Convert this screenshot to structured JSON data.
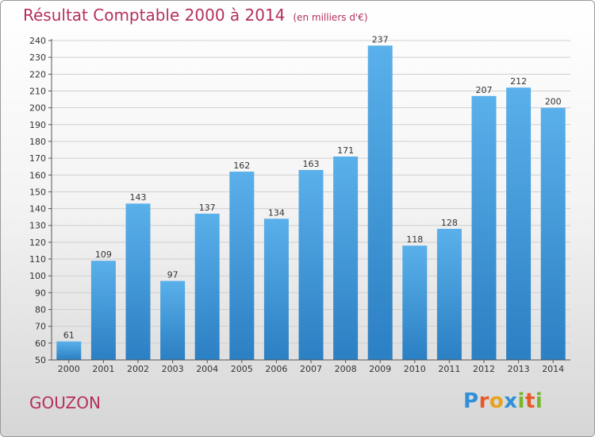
{
  "header": {
    "title": "Résultat Comptable 2000 à 2014",
    "unit": "(en milliers d'€)"
  },
  "footer": {
    "commune": "GOUZON",
    "logo_letters": [
      "P",
      "r",
      "o",
      "x",
      "i",
      "t",
      "i"
    ],
    "logo_colors": [
      "#2f8fd8",
      "#e8592a",
      "#e8a21c",
      "#2f8fd8",
      "#75b82b",
      "#e8592a",
      "#75b82b"
    ]
  },
  "colors": {
    "title": "#b5305a",
    "bar_top": "#5ab0ea",
    "bar_bottom": "#2b7fc3",
    "grid": "#cfcfcf",
    "axis_text": "#333333"
  },
  "chart_data": {
    "type": "bar",
    "title": "Résultat Comptable 2000 à 2014",
    "subtitle": "(en milliers d'€)",
    "categories": [
      "2000",
      "2001",
      "2002",
      "2003",
      "2004",
      "2005",
      "2006",
      "2007",
      "2008",
      "2009",
      "2010",
      "2011",
      "2012",
      "2013",
      "2014"
    ],
    "values": [
      61,
      109,
      143,
      97,
      137,
      162,
      134,
      163,
      171,
      237,
      118,
      128,
      207,
      212,
      200
    ],
    "ylim": [
      50,
      240
    ],
    "yticks": [
      50,
      60,
      70,
      80,
      90,
      100,
      110,
      120,
      130,
      140,
      150,
      160,
      170,
      180,
      190,
      200,
      210,
      220,
      230,
      240
    ],
    "xlabel": "",
    "ylabel": "",
    "grid": true,
    "legend": "none"
  }
}
